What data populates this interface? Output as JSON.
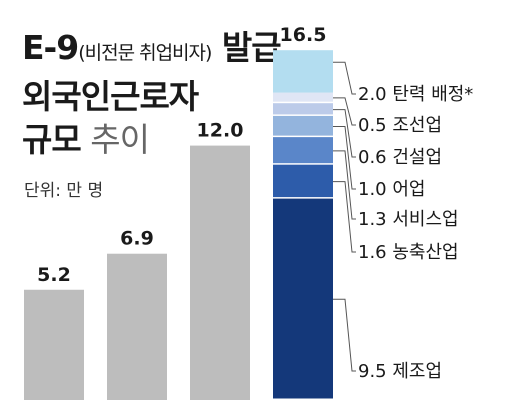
{
  "title": {
    "line1_main": "E-9",
    "line1_paren": "(비전문 취업비자)",
    "line1_tail": " 발급",
    "line2": "외국인근로자",
    "line3_main": "규모",
    "line3_light": " 추이"
  },
  "unit": "단위: 만 명",
  "chart_data": {
    "type": "bar",
    "title": "E-9(비전문 취업비자) 발급 외국인근로자 규모 추이",
    "unit": "단위: 만 명",
    "categories": [
      "",
      "",
      "",
      ""
    ],
    "values": [
      5.2,
      6.9,
      12.0,
      16.5
    ],
    "value_labels": [
      "5.2",
      "6.9",
      "12.0",
      "16.5"
    ],
    "stacked_last_bar": [
      {
        "name": "제조업",
        "value": 9.5,
        "label": "9.5 제조업",
        "color": "#14387a"
      },
      {
        "name": "농축산업",
        "value": 1.6,
        "label": "1.6 농축산업",
        "color": "#2d5caa"
      },
      {
        "name": "서비스업",
        "value": 1.3,
        "label": "1.3 서비스업",
        "color": "#5a86c9"
      },
      {
        "name": "어업",
        "value": 1.0,
        "label": "1.0 어업",
        "color": "#93b4dd"
      },
      {
        "name": "건설업",
        "value": 0.6,
        "label": "0.6 건설업",
        "color": "#bccbe9"
      },
      {
        "name": "조선업",
        "value": 0.5,
        "label": "0.5 조선업",
        "color": "#e0e6f5"
      },
      {
        "name": "탄력 배정*",
        "value": 2.0,
        "label": "2.0 탄력 배정*",
        "color": "#b3ddf0"
      }
    ],
    "colors": {
      "plain_bar": "#bdbdbd",
      "leader": "#555555"
    },
    "ylim": [
      0,
      17
    ],
    "grid": false,
    "legend": "right-of-last-bar"
  }
}
